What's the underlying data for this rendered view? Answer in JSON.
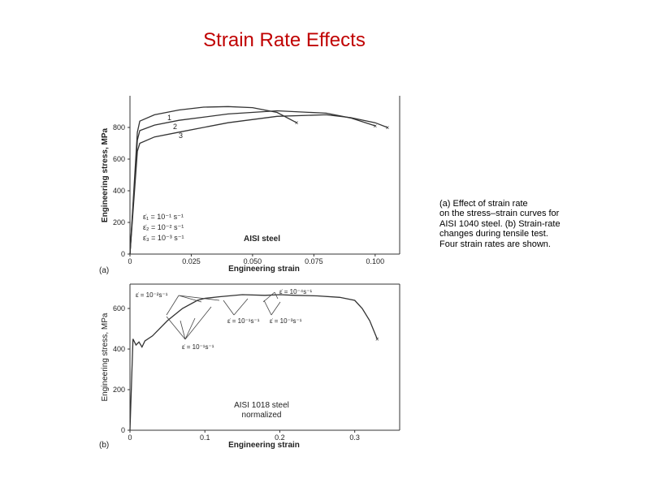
{
  "slide": {
    "title": "Strain Rate Effects",
    "caption_lines": [
      "(a) Effect of strain rate",
      "on the stress–strain curves for",
      "AISI 1040 steel. (b) Strain-rate",
      "changes during tensile test.",
      "Four strain rates are shown."
    ]
  },
  "chart_data": [
    {
      "panel_label": "(a)",
      "type": "line",
      "xlabel": "Engineering strain",
      "ylabel": "Engineering stress, MPa",
      "xlim": [
        0,
        0.11
      ],
      "ylim": [
        0,
        1000
      ],
      "x_ticks": [
        "0",
        "0.025",
        "0.050",
        "0.075",
        "0.100"
      ],
      "y_ticks": [
        "0",
        "200",
        "400",
        "600",
        "800"
      ],
      "annotation": "AISI steel",
      "legend": [
        "ε̇₁ = 10⁻¹ s⁻¹",
        "ε̇₂ = 10⁻² s⁻¹",
        "ε̇₃ = 10⁻³ s⁻¹"
      ],
      "curve_labels": [
        "1",
        "2",
        "3"
      ],
      "series": [
        {
          "name": "1",
          "x": [
            0,
            0.003,
            0.004,
            0.01,
            0.02,
            0.03,
            0.04,
            0.05,
            0.06,
            0.068
          ],
          "y": [
            0,
            770,
            840,
            880,
            910,
            928,
            932,
            925,
            895,
            830
          ]
        },
        {
          "name": "2",
          "x": [
            0,
            0.003,
            0.004,
            0.01,
            0.02,
            0.04,
            0.06,
            0.08,
            0.09,
            0.1
          ],
          "y": [
            0,
            720,
            780,
            815,
            845,
            885,
            905,
            890,
            860,
            810
          ]
        },
        {
          "name": "3",
          "x": [
            0,
            0.003,
            0.004,
            0.01,
            0.02,
            0.04,
            0.06,
            0.08,
            0.09,
            0.1,
            0.105
          ],
          "y": [
            0,
            650,
            700,
            740,
            770,
            830,
            870,
            880,
            862,
            830,
            800
          ]
        }
      ]
    },
    {
      "panel_label": "(b)",
      "type": "line",
      "xlabel": "Engineering strain",
      "ylabel": "Engineering stress, MPa",
      "xlim": [
        0,
        0.36
      ],
      "ylim": [
        0,
        720
      ],
      "x_ticks": [
        "0",
        "0.1",
        "0.2",
        "0.3"
      ],
      "y_ticks": [
        "0",
        "200",
        "400",
        "600"
      ],
      "annotation_lines": [
        "AISI 1018 steel",
        "normalized"
      ],
      "rate_labels": [
        "ε̇ = 10⁻²s⁻¹",
        "ε̇ = 10⁻⁴s⁻¹",
        "ε̇ = 10⁻¹s⁻¹",
        "ε̇ = 10⁻³s⁻¹",
        "ε̇ = 10⁻¹s⁻¹"
      ],
      "series": [
        {
          "name": "",
          "x": [
            0,
            0.004,
            0.008,
            0.012,
            0.016,
            0.02,
            0.03,
            0.05,
            0.07,
            0.09,
            0.1,
            0.12,
            0.15,
            0.18,
            0.2,
            0.22,
            0.25,
            0.28,
            0.3,
            0.31,
            0.32,
            0.33
          ],
          "y": [
            0,
            450,
            420,
            435,
            410,
            440,
            465,
            540,
            600,
            640,
            650,
            658,
            668,
            665,
            668,
            665,
            662,
            655,
            640,
            600,
            540,
            450
          ]
        }
      ]
    }
  ]
}
